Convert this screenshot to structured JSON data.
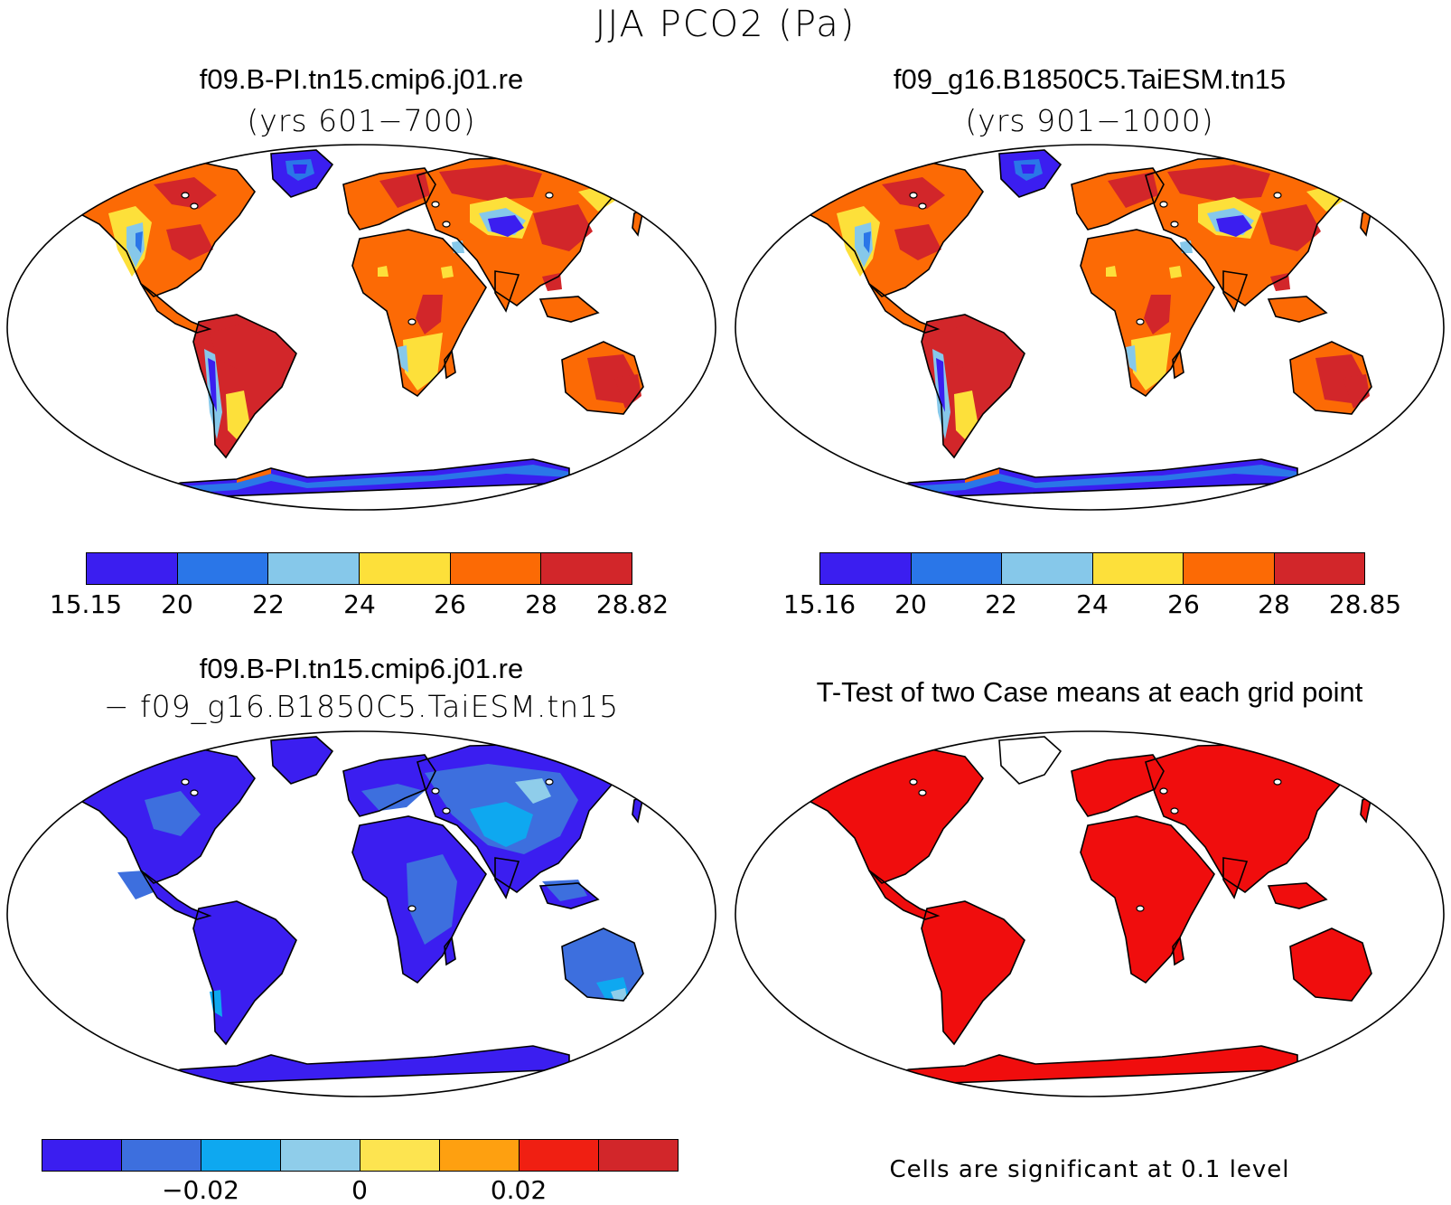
{
  "figure": {
    "title": "JJA PCO2 (Pa)"
  },
  "colors": {
    "land_abs": [
      "#3b1ef0",
      "#2a76e8",
      "#86c8ea",
      "#fde03a",
      "#fc6a05",
      "#d2262a"
    ],
    "land_diff": [
      "#3b1ef0",
      "#3d6fde",
      "#0ea8f0",
      "#8fcdea",
      "#fde450",
      "#fea010",
      "#f01f12",
      "#d2262a"
    ],
    "ttest": "#f00d0d"
  },
  "panels": {
    "case1": {
      "title": "f09.B-PI.tn15.cmip6.j01.re",
      "subtitle": "(yrs 601−700)",
      "colorbar": {
        "labels": [
          "15.15",
          "20",
          "22",
          "24",
          "26",
          "28",
          "28.82"
        ]
      }
    },
    "case2": {
      "title": "f09_g16.B1850C5.TaiESM.tn15",
      "subtitle": "(yrs 901−1000)",
      "colorbar": {
        "labels": [
          "15.16",
          "20",
          "22",
          "24",
          "26",
          "28",
          "28.85"
        ]
      }
    },
    "diff": {
      "title": "f09.B-PI.tn15.cmip6.j01.re",
      "subtitle": "− f09_g16.B1850C5.TaiESM.tn15",
      "colorbar": {
        "labels": [
          "−0.02",
          "0",
          "0.02"
        ]
      }
    },
    "ttest": {
      "title": "T-Test of two Case means at each grid point",
      "note": "Cells are significant at 0.1 level"
    }
  }
}
